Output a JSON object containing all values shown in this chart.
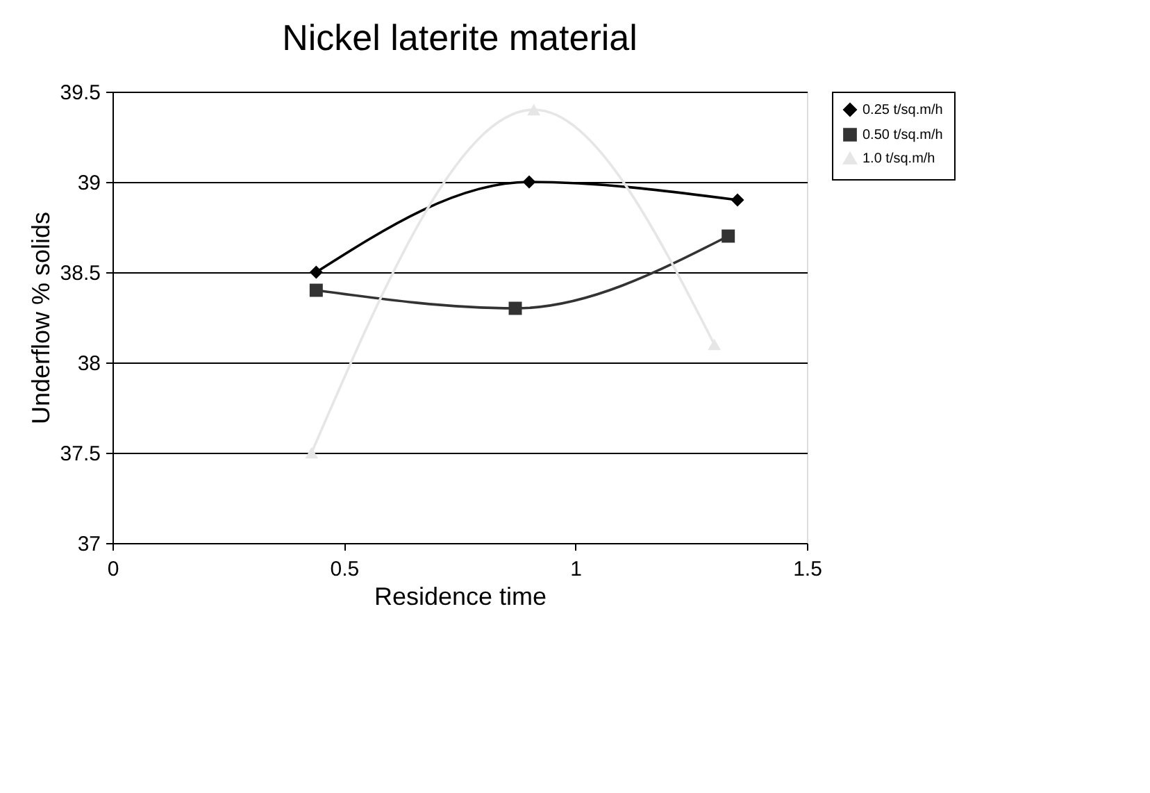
{
  "chart_data": {
    "type": "line",
    "title": "Nickel laterite material",
    "xlabel": "Residence time",
    "ylabel": "Underflow % solids",
    "xlim": [
      0,
      1.5
    ],
    "xticks": [
      0,
      0.5,
      1,
      1.5
    ],
    "ylim": [
      37,
      39.5
    ],
    "yticks": [
      37,
      37.5,
      38,
      38.5,
      39,
      39.5
    ],
    "grid": "y",
    "legend": "right",
    "series": [
      {
        "name": "0.25 t/sq.m/h",
        "color": "#000000",
        "marker": "diamond",
        "x": [
          0.44,
          0.9,
          1.35
        ],
        "values": [
          38.5,
          39.0,
          38.9
        ]
      },
      {
        "name": "0.50 t/sq.m/h",
        "color": "#333333",
        "marker": "square",
        "x": [
          0.44,
          0.87,
          1.33
        ],
        "values": [
          38.4,
          38.3,
          38.7
        ]
      },
      {
        "name": "1.0 t/sq.m/h",
        "color": "#e6e6e6",
        "marker": "triangle",
        "x": [
          0.43,
          0.91,
          1.3
        ],
        "values": [
          37.5,
          39.4,
          38.1
        ]
      }
    ]
  }
}
